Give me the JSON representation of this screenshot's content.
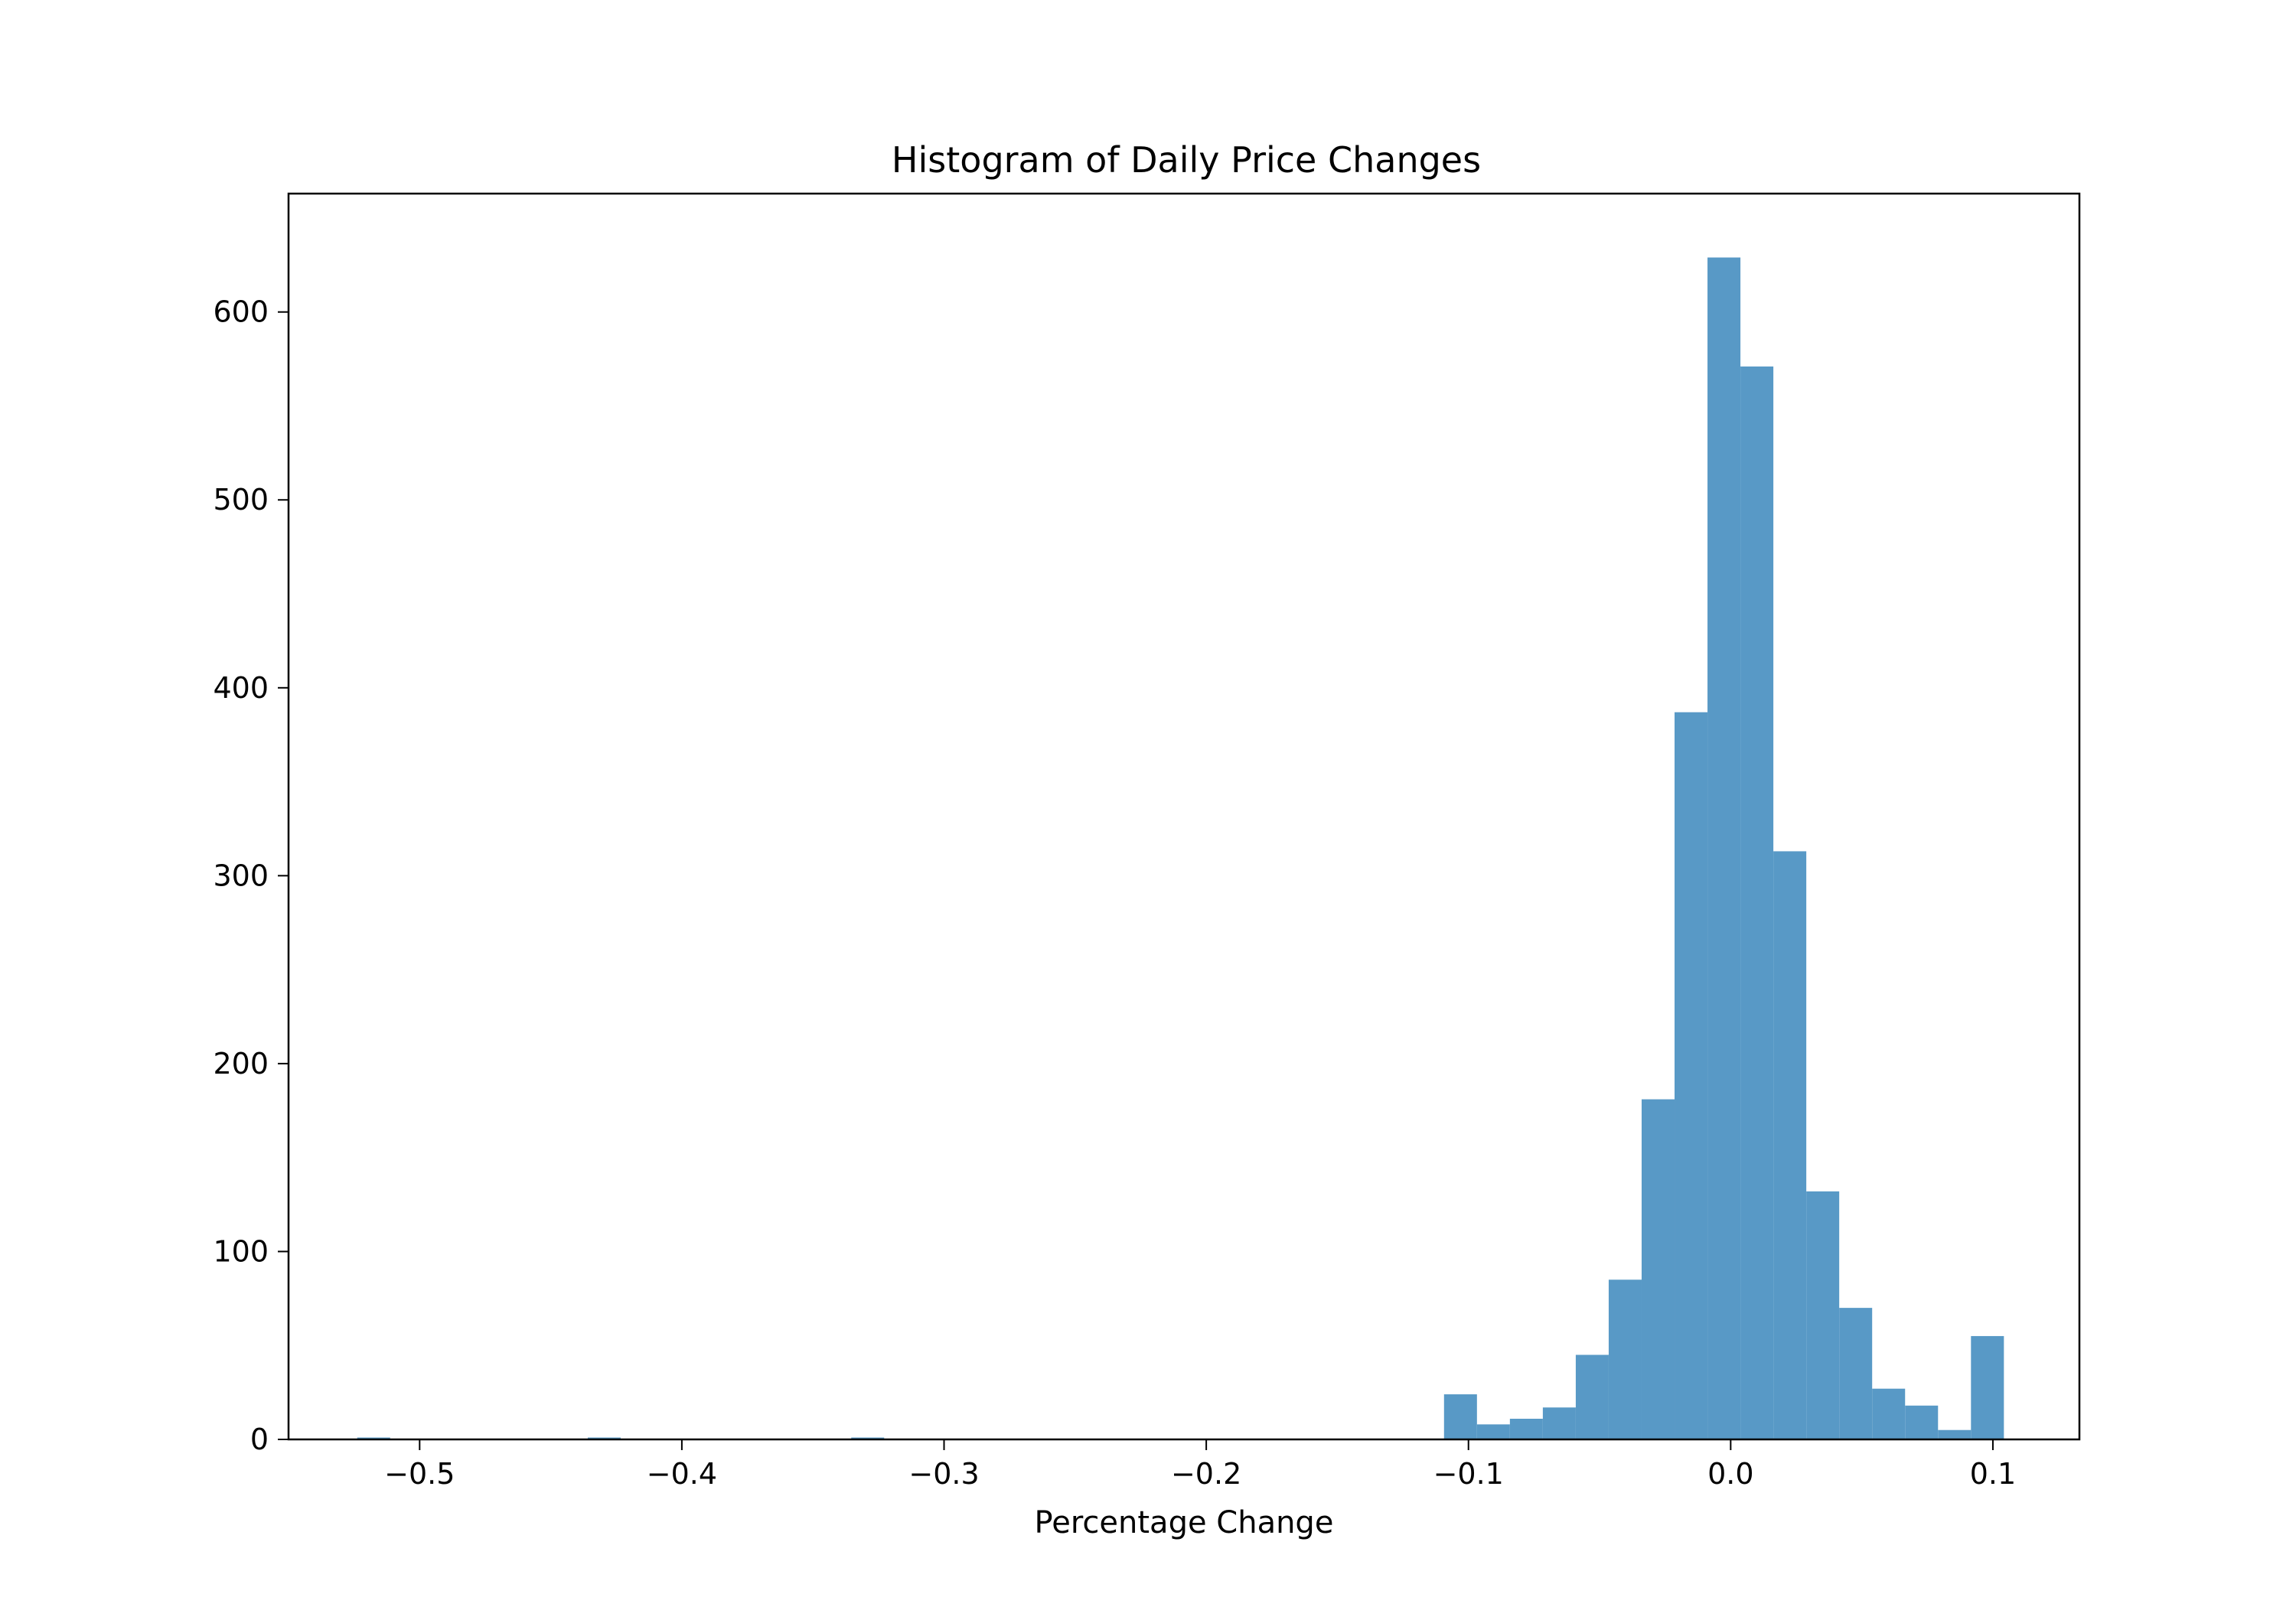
{
  "chart_data": {
    "type": "bar",
    "title": "Histogram of Daily Price Changes",
    "xlabel": "Percentage Change",
    "ylabel": "",
    "xlim": [
      -0.55,
      0.133
    ],
    "ylim": [
      0,
      663
    ],
    "xticks": [
      {
        "value": -0.5,
        "label": "−0.5"
      },
      {
        "value": -0.4,
        "label": "−0.4"
      },
      {
        "value": -0.3,
        "label": "−0.3"
      },
      {
        "value": -0.2,
        "label": "−0.2"
      },
      {
        "value": -0.1,
        "label": "−0.1"
      },
      {
        "value": 0.0,
        "label": "0.0"
      },
      {
        "value": 0.1,
        "label": "0.1"
      }
    ],
    "yticks": [
      {
        "value": 0,
        "label": "0"
      },
      {
        "value": 100,
        "label": "100"
      },
      {
        "value": 200,
        "label": "200"
      },
      {
        "value": 300,
        "label": "300"
      },
      {
        "value": 400,
        "label": "400"
      },
      {
        "value": 500,
        "label": "500"
      },
      {
        "value": 600,
        "label": "600"
      }
    ],
    "color": "#5899c6",
    "bin_start": -0.5238,
    "bin_width": 0.01256,
    "values": [
      1,
      0,
      0,
      0,
      0,
      0,
      0,
      1,
      0,
      0,
      0,
      0,
      0,
      0,
      0,
      1,
      0,
      0,
      0,
      0,
      0,
      0,
      0,
      0,
      0,
      0,
      0,
      0,
      0,
      0,
      0,
      0,
      0,
      24,
      8,
      11,
      17,
      45,
      85,
      181,
      387,
      629,
      571,
      313,
      132,
      70,
      27,
      18,
      5,
      55
    ],
    "grid": false,
    "legend": "none"
  }
}
